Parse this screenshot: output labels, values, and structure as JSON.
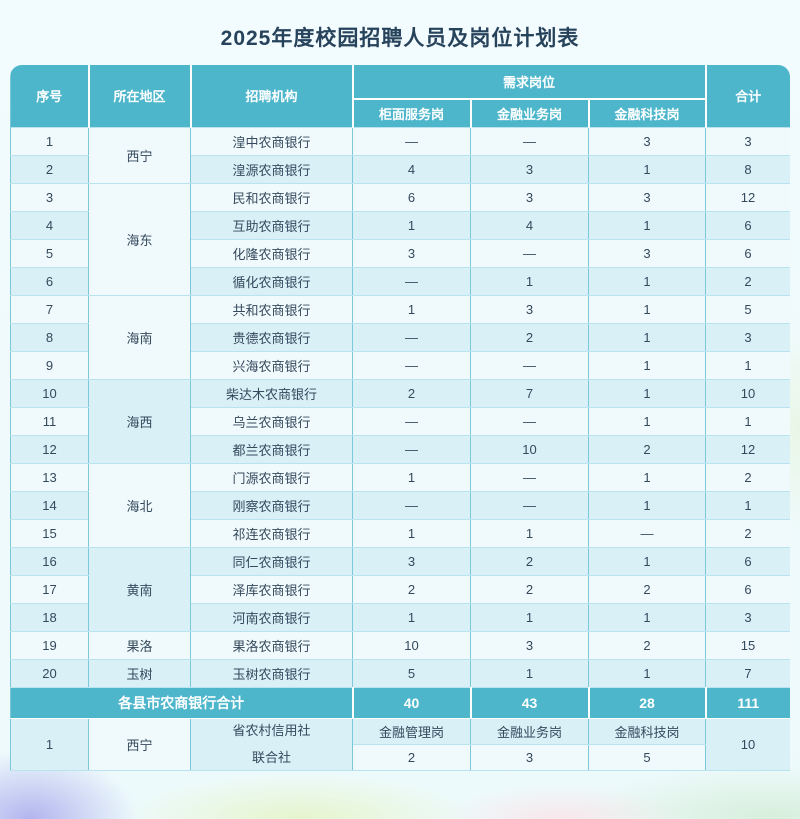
{
  "title": "2025年度校园招聘人员及岗位计划表",
  "colors": {
    "header_teal": "#4db6cb",
    "row_light": "#f0fafc",
    "row_cyan": "#d9f0f6",
    "title_navy": "#27435c",
    "border_teal": "#7cc7da"
  },
  "table": {
    "header": {
      "seq": "序号",
      "region": "所在地区",
      "org": "招聘机构",
      "demand": "需求岗位",
      "sub": [
        "柜面服务岗",
        "金融业务岗",
        "金融科技岗"
      ],
      "total": "合计"
    },
    "rows": [
      {
        "seq": "1",
        "region": "西宁",
        "region_span": 2,
        "org": "湟中农商银行",
        "vals": [
          "—",
          "—",
          "3"
        ],
        "total": "3"
      },
      {
        "seq": "2",
        "org": "湟源农商银行",
        "vals": [
          "4",
          "3",
          "1"
        ],
        "total": "8"
      },
      {
        "seq": "3",
        "region": "海东",
        "region_span": 4,
        "org": "民和农商银行",
        "vals": [
          "6",
          "3",
          "3"
        ],
        "total": "12"
      },
      {
        "seq": "4",
        "org": "互助农商银行",
        "vals": [
          "1",
          "4",
          "1"
        ],
        "total": "6"
      },
      {
        "seq": "5",
        "org": "化隆农商银行",
        "vals": [
          "3",
          "—",
          "3"
        ],
        "total": "6"
      },
      {
        "seq": "6",
        "org": "循化农商银行",
        "vals": [
          "—",
          "1",
          "1"
        ],
        "total": "2"
      },
      {
        "seq": "7",
        "region": "海南",
        "region_span": 3,
        "org": "共和农商银行",
        "vals": [
          "1",
          "3",
          "1"
        ],
        "total": "5"
      },
      {
        "seq": "8",
        "org": "贵德农商银行",
        "vals": [
          "—",
          "2",
          "1"
        ],
        "total": "3"
      },
      {
        "seq": "9",
        "org": "兴海农商银行",
        "vals": [
          "—",
          "—",
          "1"
        ],
        "total": "1"
      },
      {
        "seq": "10",
        "region": "海西",
        "region_span": 3,
        "org": "柴达木农商银行",
        "vals": [
          "2",
          "7",
          "1"
        ],
        "total": "10"
      },
      {
        "seq": "11",
        "org": "乌兰农商银行",
        "vals": [
          "—",
          "—",
          "1"
        ],
        "total": "1"
      },
      {
        "seq": "12",
        "org": "都兰农商银行",
        "vals": [
          "—",
          "10",
          "2"
        ],
        "total": "12"
      },
      {
        "seq": "13",
        "region": "海北",
        "region_span": 3,
        "org": "门源农商银行",
        "vals": [
          "1",
          "—",
          "1"
        ],
        "total": "2"
      },
      {
        "seq": "14",
        "org": "刚察农商银行",
        "vals": [
          "—",
          "—",
          "1"
        ],
        "total": "1"
      },
      {
        "seq": "15",
        "org": "祁连农商银行",
        "vals": [
          "1",
          "1",
          "—"
        ],
        "total": "2"
      },
      {
        "seq": "16",
        "region": "黄南",
        "region_span": 3,
        "org": "同仁农商银行",
        "vals": [
          "3",
          "2",
          "1"
        ],
        "total": "6"
      },
      {
        "seq": "17",
        "org": "泽库农商银行",
        "vals": [
          "2",
          "2",
          "2"
        ],
        "total": "6"
      },
      {
        "seq": "18",
        "org": "河南农商银行",
        "vals": [
          "1",
          "1",
          "1"
        ],
        "total": "3"
      },
      {
        "seq": "19",
        "region": "果洛",
        "region_span": 1,
        "org": "果洛农商银行",
        "vals": [
          "10",
          "3",
          "2"
        ],
        "total": "15"
      },
      {
        "seq": "20",
        "region": "玉树",
        "region_span": 1,
        "org": "玉树农商银行",
        "vals": [
          "5",
          "1",
          "1"
        ],
        "total": "7"
      }
    ],
    "summary": {
      "label": "各县市农商银行合计",
      "values": [
        "40",
        "43",
        "28"
      ],
      "total": "111"
    },
    "extra": {
      "seq": "1",
      "region": "西宁",
      "org_line1": "省农村信用社",
      "org_line2": "联合社",
      "labels": [
        "金融管理岗",
        "金融业务岗",
        "金融科技岗"
      ],
      "values": [
        "2",
        "3",
        "5"
      ],
      "total": "10"
    }
  }
}
